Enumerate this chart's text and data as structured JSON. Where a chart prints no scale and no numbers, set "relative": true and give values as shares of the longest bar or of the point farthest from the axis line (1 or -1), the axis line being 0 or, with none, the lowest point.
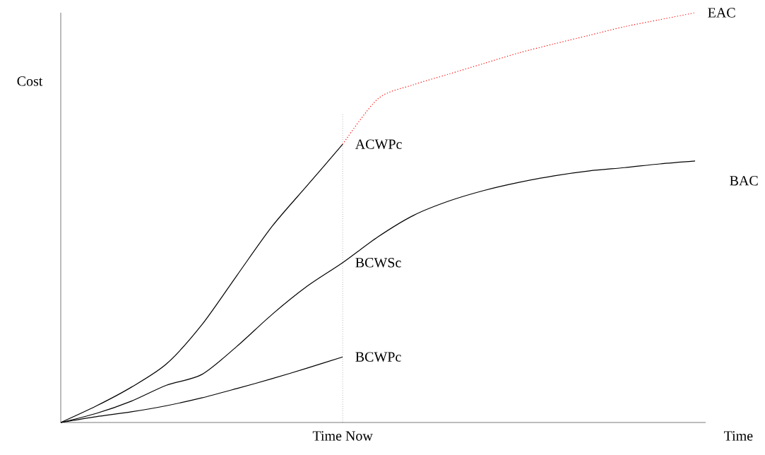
{
  "chart_data": {
    "type": "line",
    "relative": true,
    "xlabel": "Time",
    "ylabel": "Cost",
    "categories": [
      null,
      null,
      null,
      null,
      null,
      null,
      null,
      null,
      null,
      null,
      null,
      null,
      null,
      null,
      null,
      null,
      null,
      null,
      null
    ],
    "series": [
      {
        "name": "ACWPc",
        "color": "#000000",
        "line_style": "solid",
        "values": [
          0,
          0.04,
          0.086,
          0.143,
          0.238,
          0.359,
          0.479,
          0.579,
          0.679,
          null,
          null,
          null,
          null,
          null,
          null,
          null,
          null,
          null,
          null
        ]
      },
      {
        "name": "BCWSc",
        "color": "#000000",
        "line_style": "solid",
        "values": [
          0,
          0.022,
          0.052,
          0.091,
          0.117,
          0.186,
          0.264,
          0.333,
          0.39,
          0.453,
          0.505,
          0.54,
          0.566,
          0.586,
          0.602,
          0.614,
          0.622,
          0.631,
          0.638
        ]
      },
      {
        "name": "BCWPc",
        "color": "#000000",
        "line_style": "solid",
        "values": [
          0,
          0.014,
          0.026,
          0.041,
          0.06,
          0.083,
          0.107,
          0.133,
          0.16,
          null,
          null,
          null,
          null,
          null,
          null,
          null,
          null,
          null,
          null
        ]
      },
      {
        "name": "EAC",
        "color": "#ff0000",
        "line_style": "dotted",
        "values": [
          null,
          null,
          null,
          null,
          null,
          null,
          null,
          null,
          0.679,
          0.79,
          0.824,
          0.85,
          0.876,
          0.902,
          0.924,
          0.945,
          0.966,
          0.983,
          1.0
        ]
      }
    ],
    "annotations": [
      "BAC",
      "Time Now"
    ],
    "grid": false,
    "legend": false,
    "marker": "none"
  }
}
